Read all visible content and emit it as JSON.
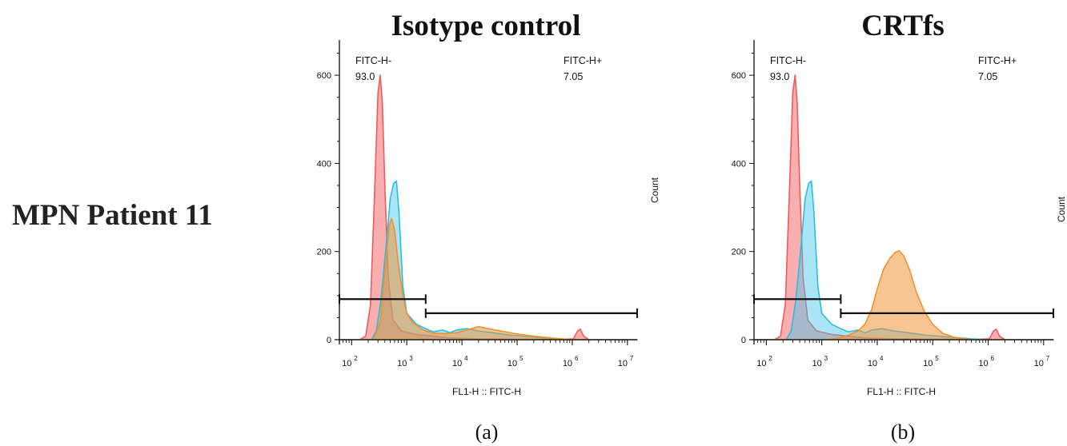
{
  "row_label": "MPN Patient 11",
  "chart_data": [
    {
      "type": "area",
      "panel_label": "(a)",
      "title": "Isotype control",
      "xlabel": "FL1-H :: FITC-H",
      "ylabel": "Count",
      "x_scale": "log",
      "xlim": [
        60,
        15000000
      ],
      "ylim": [
        0,
        680
      ],
      "x_ticks": [
        {
          "base": "10",
          "exp": "2",
          "v": 100
        },
        {
          "base": "10",
          "exp": "3",
          "v": 1000
        },
        {
          "base": "10",
          "exp": "4",
          "v": 10000
        },
        {
          "base": "10",
          "exp": "5",
          "v": 100000
        },
        {
          "base": "10",
          "exp": "6",
          "v": 1000000
        },
        {
          "base": "10",
          "exp": "7",
          "v": 10000000
        }
      ],
      "y_ticks": [
        0,
        200,
        400,
        600
      ],
      "gates": [
        {
          "name": "FITC-H-",
          "value": "93.0",
          "x_range": [
            60,
            2200
          ],
          "y": 92
        },
        {
          "name": "FITC-H+",
          "value": "7.05",
          "x_range": [
            2200,
            15000000
          ],
          "y": 60
        }
      ],
      "series": [
        {
          "color": "#f25a5a",
          "fill": "rgba(244,110,110,0.55)",
          "points": [
            [
              60,
              0
            ],
            [
              140,
              0
            ],
            [
              180,
              8
            ],
            [
              220,
              80
            ],
            [
              260,
              330
            ],
            [
              300,
              560
            ],
            [
              330,
              600
            ],
            [
              360,
              540
            ],
            [
              400,
              350
            ],
            [
              460,
              140
            ],
            [
              560,
              45
            ],
            [
              800,
              20
            ],
            [
              1500,
              12
            ],
            [
              3000,
              8
            ],
            [
              6000,
              4
            ],
            [
              20000,
              2
            ],
            [
              100000,
              1
            ],
            [
              700000,
              1
            ],
            [
              1050000,
              2
            ],
            [
              1250000,
              20
            ],
            [
              1400000,
              24
            ],
            [
              1600000,
              8
            ],
            [
              2000000,
              0
            ],
            [
              15000000,
              0
            ]
          ]
        },
        {
          "color": "#29bde6",
          "fill": "rgba(66,198,236,0.45)",
          "points": [
            [
              60,
              0
            ],
            [
              230,
              0
            ],
            [
              280,
              20
            ],
            [
              340,
              90
            ],
            [
              420,
              210
            ],
            [
              500,
              320
            ],
            [
              580,
              355
            ],
            [
              650,
              360
            ],
            [
              720,
              290
            ],
            [
              850,
              120
            ],
            [
              1000,
              60
            ],
            [
              1500,
              35
            ],
            [
              2200,
              25
            ],
            [
              3000,
              18
            ],
            [
              4500,
              22
            ],
            [
              6000,
              16
            ],
            [
              8000,
              22
            ],
            [
              12000,
              25
            ],
            [
              20000,
              20
            ],
            [
              40000,
              15
            ],
            [
              80000,
              10
            ],
            [
              200000,
              6
            ],
            [
              500000,
              2
            ],
            [
              1000000,
              0
            ],
            [
              15000000,
              0
            ]
          ]
        },
        {
          "color": "#f0922a",
          "fill": "rgba(240,150,60,0.55)",
          "points": [
            [
              60,
              0
            ],
            [
              250,
              0
            ],
            [
              330,
              40
            ],
            [
              420,
              180
            ],
            [
              480,
              260
            ],
            [
              530,
              275
            ],
            [
              600,
              250
            ],
            [
              700,
              175
            ],
            [
              850,
              100
            ],
            [
              1000,
              60
            ],
            [
              1300,
              38
            ],
            [
              2000,
              22
            ],
            [
              3000,
              15
            ],
            [
              5000,
              14
            ],
            [
              8000,
              16
            ],
            [
              12000,
              22
            ],
            [
              20000,
              30
            ],
            [
              30000,
              25
            ],
            [
              50000,
              20
            ],
            [
              90000,
              14
            ],
            [
              200000,
              8
            ],
            [
              500000,
              3
            ],
            [
              1000000,
              0
            ],
            [
              15000000,
              0
            ]
          ]
        }
      ]
    },
    {
      "type": "area",
      "panel_label": "(b)",
      "title": "CRTfs",
      "xlabel": "FL1-H :: FITC-H",
      "ylabel": "Count",
      "x_scale": "log",
      "xlim": [
        60,
        15000000
      ],
      "ylim": [
        0,
        680
      ],
      "x_ticks": [
        {
          "base": "10",
          "exp": "2",
          "v": 100
        },
        {
          "base": "10",
          "exp": "3",
          "v": 1000
        },
        {
          "base": "10",
          "exp": "4",
          "v": 10000
        },
        {
          "base": "10",
          "exp": "5",
          "v": 100000
        },
        {
          "base": "10",
          "exp": "6",
          "v": 1000000
        },
        {
          "base": "10",
          "exp": "7",
          "v": 10000000
        }
      ],
      "y_ticks": [
        0,
        200,
        400,
        600
      ],
      "gates": [
        {
          "name": "FITC-H-",
          "value": "93.0",
          "x_range": [
            60,
            2200
          ],
          "y": 92
        },
        {
          "name": "FITC-H+",
          "value": "7.05",
          "x_range": [
            2200,
            15000000
          ],
          "y": 60
        }
      ],
      "series": [
        {
          "color": "#f25a5a",
          "fill": "rgba(244,110,110,0.55)",
          "points": [
            [
              60,
              0
            ],
            [
              140,
              0
            ],
            [
              180,
              8
            ],
            [
              220,
              80
            ],
            [
              260,
              330
            ],
            [
              300,
              560
            ],
            [
              330,
              600
            ],
            [
              360,
              540
            ],
            [
              400,
              350
            ],
            [
              460,
              140
            ],
            [
              560,
              45
            ],
            [
              800,
              20
            ],
            [
              1500,
              12
            ],
            [
              3000,
              8
            ],
            [
              6000,
              4
            ],
            [
              20000,
              2
            ],
            [
              100000,
              1
            ],
            [
              700000,
              1
            ],
            [
              1050000,
              2
            ],
            [
              1250000,
              20
            ],
            [
              1400000,
              24
            ],
            [
              1600000,
              8
            ],
            [
              2000000,
              0
            ],
            [
              15000000,
              0
            ]
          ]
        },
        {
          "color": "#29bde6",
          "fill": "rgba(66,198,236,0.45)",
          "points": [
            [
              60,
              0
            ],
            [
              230,
              0
            ],
            [
              280,
              20
            ],
            [
              340,
              90
            ],
            [
              420,
              210
            ],
            [
              500,
              320
            ],
            [
              580,
              355
            ],
            [
              650,
              360
            ],
            [
              720,
              290
            ],
            [
              850,
              120
            ],
            [
              1000,
              60
            ],
            [
              1500,
              35
            ],
            [
              2200,
              25
            ],
            [
              3000,
              18
            ],
            [
              4500,
              22
            ],
            [
              6000,
              16
            ],
            [
              8000,
              22
            ],
            [
              12000,
              25
            ],
            [
              20000,
              20
            ],
            [
              40000,
              15
            ],
            [
              80000,
              10
            ],
            [
              200000,
              6
            ],
            [
              500000,
              2
            ],
            [
              1000000,
              0
            ],
            [
              15000000,
              0
            ]
          ]
        },
        {
          "color": "#f0922a",
          "fill": "rgba(240,150,60,0.55)",
          "points": [
            [
              60,
              0
            ],
            [
              1200,
              0
            ],
            [
              2000,
              4
            ],
            [
              3000,
              10
            ],
            [
              4500,
              20
            ],
            [
              6000,
              35
            ],
            [
              8000,
              70
            ],
            [
              10000,
              115
            ],
            [
              13000,
              160
            ],
            [
              17000,
              185
            ],
            [
              21000,
              198
            ],
            [
              25000,
              202
            ],
            [
              30000,
              190
            ],
            [
              38000,
              160
            ],
            [
              50000,
              110
            ],
            [
              70000,
              65
            ],
            [
              100000,
              35
            ],
            [
              150000,
              15
            ],
            [
              250000,
              5
            ],
            [
              400000,
              1
            ],
            [
              600000,
              0
            ],
            [
              15000000,
              0
            ]
          ]
        }
      ]
    }
  ]
}
